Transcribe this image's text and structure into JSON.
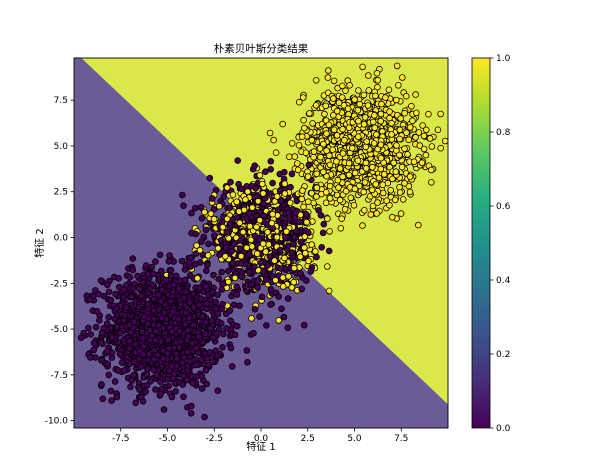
{
  "chart_data": {
    "type": "scatter",
    "title": "朴素贝叶斯分类结果",
    "xlabel": "特征 1",
    "ylabel": "特征 2",
    "xlim": [
      -10.0,
      10.0
    ],
    "ylim": [
      -10.4,
      9.8
    ],
    "xticks": [
      "-7.5",
      "-5.0",
      "-2.5",
      "0.0",
      "2.5",
      "5.0",
      "7.5"
    ],
    "yticks": [
      "7.5",
      "5.0",
      "2.5",
      "0.0",
      "-2.5",
      "-5.0",
      "-7.5",
      "-10.0"
    ],
    "decision_boundary": {
      "description": "linear boundary separating class 0 (lower-left) from class 1 (upper-right)",
      "points": [
        [
          -9.6,
          9.8
        ],
        [
          10.0,
          -9.1
        ]
      ],
      "region_colors": {
        "class_0": "#46337e",
        "class_1": "#d2e21b"
      },
      "region_alpha": 0.8
    },
    "clusters": [
      {
        "class": 0,
        "center": [
          -5.2,
          -5.0
        ],
        "spread": 1.6,
        "count": 1400
      },
      {
        "class": 1,
        "center": [
          5.3,
          5.0
        ],
        "spread": 1.5,
        "count": 1300
      },
      {
        "class": 0,
        "center": [
          0.0,
          0.0
        ],
        "spread": 1.4,
        "count": 650
      },
      {
        "class": 1,
        "center": [
          0.0,
          0.0
        ],
        "spread": 1.4,
        "count": 500
      }
    ],
    "point_colors": {
      "class_0": "#440154",
      "class_1": "#fde725",
      "edge": "#000000"
    },
    "colorbar": {
      "colormap": "viridis",
      "range": [
        0.0,
        1.0
      ],
      "ticks": [
        "1.0",
        "0.8",
        "0.6",
        "0.4",
        "0.2",
        "0.0"
      ]
    },
    "grid": false,
    "legend": "none"
  }
}
